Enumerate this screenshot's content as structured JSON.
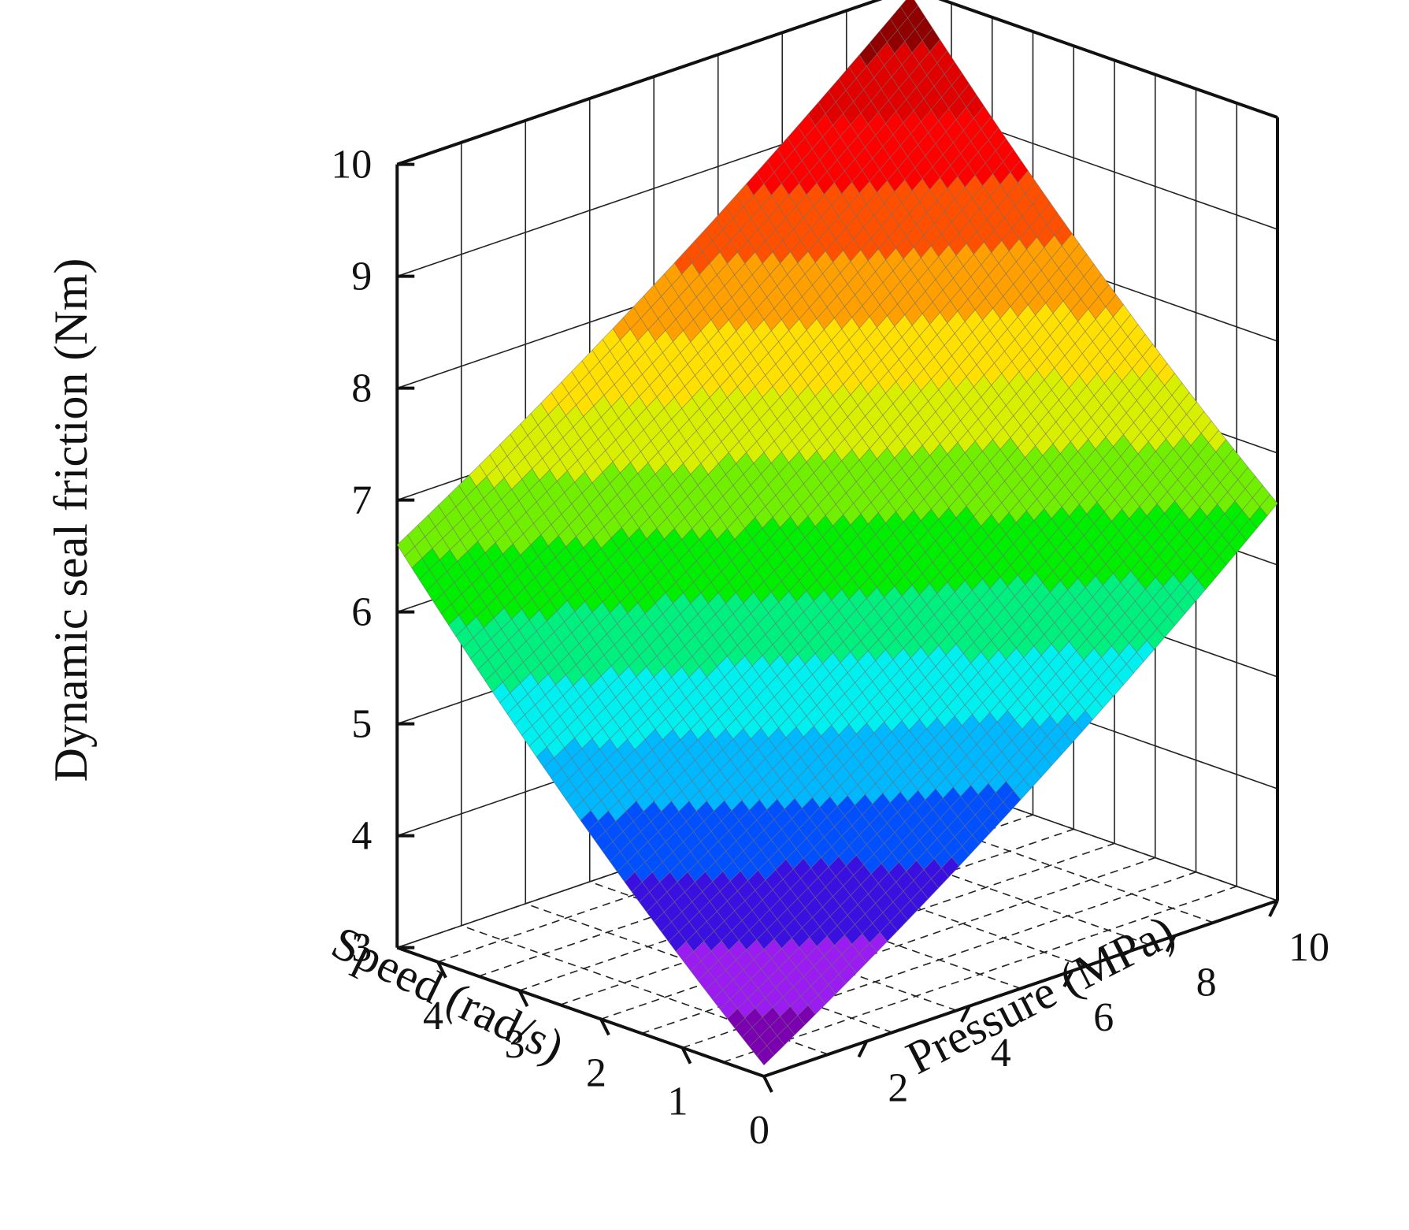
{
  "chart_data": {
    "type": "surface3d",
    "title": "",
    "zlabel": "Dynamic seal friction (Nm)",
    "xlabel": "Speed (rad/s)",
    "ylabel": "Pressure (MPa)",
    "xlim": [
      0,
      4.5
    ],
    "ylim": [
      0,
      10
    ],
    "zlim": [
      3,
      10
    ],
    "x_ticks": [
      "0",
      "1",
      "2",
      "3",
      "4"
    ],
    "y_ticks": [
      "2",
      "4",
      "6",
      "8",
      "10"
    ],
    "z_ticks": [
      "3",
      "4",
      "5",
      "6",
      "7",
      "8",
      "9",
      "10"
    ],
    "surface_corners": {
      "speed_0_pressure_0": 3.1,
      "speed_4.5_pressure_0": 6.6,
      "speed_0_pressure_10": 6.55,
      "speed_4.5_pressure_10": 9.95
    },
    "colormap": [
      "#7a00b0",
      "#9a1cf0",
      "#3a10e0",
      "#0050ff",
      "#00b8ff",
      "#00f0f0",
      "#00f080",
      "#00ee00",
      "#70f000",
      "#d8f000",
      "#ffe000",
      "#ffa000",
      "#ff5000",
      "#ff0000",
      "#e00000",
      "#900000"
    ]
  }
}
